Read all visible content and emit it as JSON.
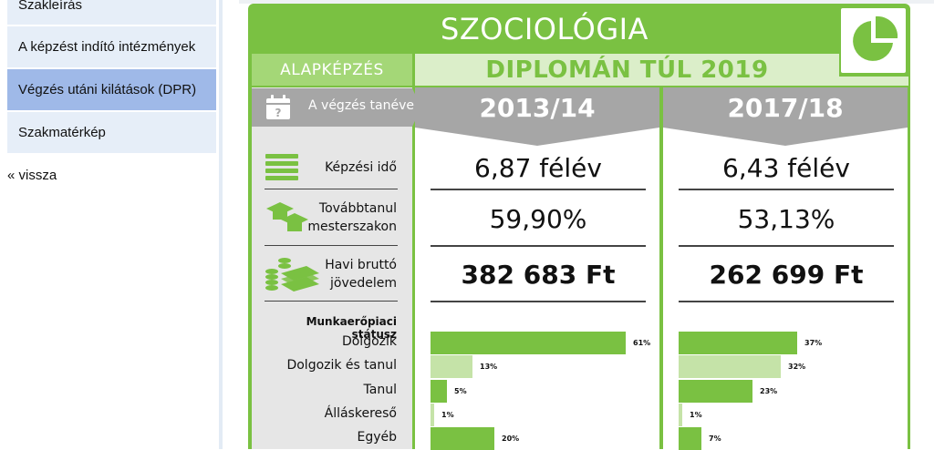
{
  "sidebar": {
    "items": [
      {
        "label": "Szakleírás",
        "active": false
      },
      {
        "label": "A képzést indító intézmények",
        "active": false
      },
      {
        "label": "Végzés utáni kilátások (DPR)",
        "active": true
      },
      {
        "label": "Szakmatérkép",
        "active": false
      }
    ],
    "back_label": "« vissza"
  },
  "infographic": {
    "title": "SZOCIOLÓGIA",
    "level": "ALAPKÉPZÉS",
    "subtitle": "DIPLOMÁN TÚL 2019",
    "graduation_label": "A végzés tanéve",
    "years": [
      "2013/14",
      "2017/18"
    ],
    "metrics": [
      {
        "label_lines": [
          "Képzési idő"
        ],
        "icon": "books-icon",
        "values": [
          "6,87 félév",
          "6,43 félév"
        ],
        "bold": false
      },
      {
        "label_lines": [
          "Továbbtanul",
          "mesterszakon"
        ],
        "icon": "graduation-cap-icon",
        "values": [
          "59,90%",
          "53,13%"
        ],
        "bold": false
      },
      {
        "label_lines": [
          "Havi bruttó",
          "jövedelem"
        ],
        "icon": "money-icon",
        "values": [
          "382 683 Ft",
          "262 699 Ft"
        ],
        "bold": true
      }
    ],
    "status_title": "Munkaerőpiaci státusz",
    "status": [
      {
        "label": "Dolgozik",
        "values": [
          61,
          37
        ],
        "pct_labels": [
          "61%",
          "37%"
        ],
        "shade": "dark"
      },
      {
        "label": "Dolgozik és tanul",
        "values": [
          13,
          32
        ],
        "pct_labels": [
          "13%",
          "32%"
        ],
        "shade": "light"
      },
      {
        "label": "Tanul",
        "values": [
          5,
          23
        ],
        "pct_labels": [
          "5%",
          "23%"
        ],
        "shade": "dark"
      },
      {
        "label": "Álláskereső",
        "values": [
          1,
          1
        ],
        "pct_labels": [
          "1%",
          "1%"
        ],
        "shade": "light"
      },
      {
        "label": "Egyéb",
        "values": [
          20,
          7
        ],
        "pct_labels": [
          "20%",
          "7%"
        ],
        "shade": "dark"
      }
    ],
    "colors": {
      "green": "#7ac142",
      "light_green": "#c5e3a8",
      "pale_green": "#dbeec9",
      "grey": "#a6a6a6"
    }
  }
}
